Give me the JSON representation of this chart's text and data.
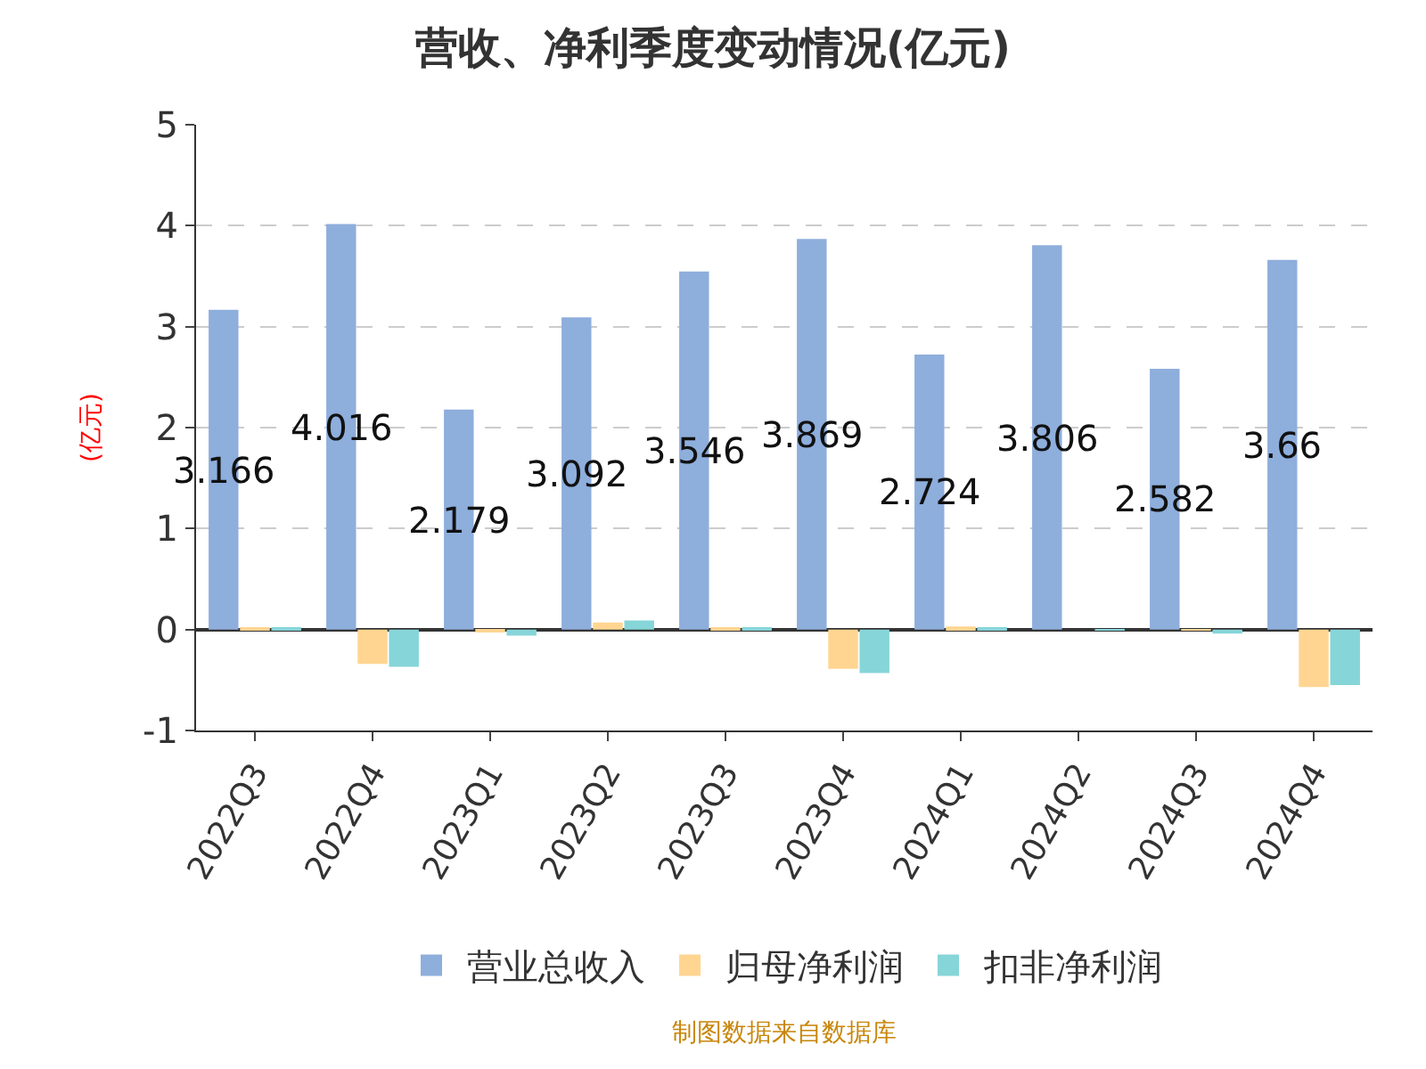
{
  "chart_data": {
    "type": "bar",
    "title": "营收、净利季度变动情况(亿元)",
    "ylabel": "(亿元)",
    "categories": [
      "2022Q3",
      "2022Q4",
      "2023Q1",
      "2023Q2",
      "2023Q3",
      "2023Q4",
      "2024Q1",
      "2024Q2",
      "2024Q3",
      "2024Q4"
    ],
    "series": [
      {
        "name": "营业总收入",
        "color": "#8eaedc",
        "values": [
          3.166,
          4.016,
          2.179,
          3.092,
          3.546,
          3.869,
          2.724,
          3.806,
          2.582,
          3.66
        ],
        "value_labels": [
          "3.166",
          "4.016",
          "2.179",
          "3.092",
          "3.546",
          "3.869",
          "2.724",
          "3.806",
          "2.582",
          "3.66"
        ]
      },
      {
        "name": "归母净利润",
        "color": "#ffd591",
        "values": [
          0.01,
          -0.34,
          -0.02,
          0.07,
          0.01,
          -0.39,
          0.03,
          0.0,
          -0.01,
          -0.57
        ]
      },
      {
        "name": "扣非净利润",
        "color": "#86d5d8",
        "values": [
          0.01,
          -0.37,
          -0.06,
          0.09,
          0.01,
          -0.43,
          0.02,
          -0.01,
          -0.04,
          -0.55
        ]
      }
    ],
    "ylim": [
      -1,
      5
    ],
    "yticks": [
      -1,
      0,
      1,
      2,
      3,
      4,
      5
    ],
    "grid": "y",
    "legend": "bottom",
    "annotations": [
      "制图数据来自数据库"
    ]
  }
}
